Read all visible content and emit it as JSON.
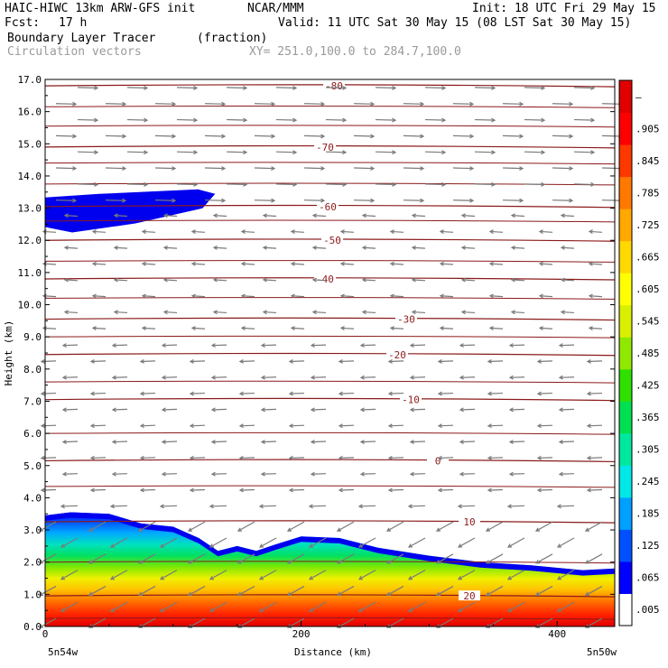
{
  "header": {
    "model": "HAIC-HIWC 13km ARW-GFS init",
    "org": "NCAR/MMM",
    "init": "Init: 18 UTC Fri 29 May 15",
    "fcst_label": "Fcst:",
    "fcst_value": "17 h",
    "valid": "Valid: 11 UTC Sat 30 May 15 (08 LST Sat 30 May 15)",
    "field": "Boundary Layer Tracer",
    "field_units": "(fraction)",
    "vector_label": "Circulation vectors",
    "xy_label": "XY= 251.0,100.0 to 284.7,100.0"
  },
  "colors": {
    "contour": "#8b1a1a",
    "vector": "#7a7a7a",
    "axes": "#000000"
  },
  "chart_data": {
    "type": "heatmap",
    "title": "Boundary Layer Tracer",
    "xlabel": "Distance (km)",
    "ylabel": "Height (km)",
    "xlim": [
      0,
      445
    ],
    "ylim": [
      0,
      17
    ],
    "x_ticks": [
      0,
      200,
      400
    ],
    "y_ticks": [
      "0.0",
      "1.0",
      "2.0",
      "3.0",
      "4.0",
      "5.0",
      "6.0",
      "7.0",
      "8.0",
      "9.0",
      "10.0",
      "11.0",
      "12.0",
      "13.0",
      "14.0",
      "15.0",
      "16.0",
      "17.0"
    ],
    "x_left_label": "5n54w",
    "x_right_label": "5n50w",
    "colorbar": {
      "labels": [
        ".005",
        ".065",
        ".125",
        ".185",
        ".245",
        ".305",
        ".365",
        ".425",
        ".485",
        ".545",
        ".605",
        ".665",
        ".725",
        ".785",
        ".845",
        ".905",
        "–"
      ],
      "colors": [
        "#ffffff",
        "#0000ff",
        "#0050ff",
        "#00a0ff",
        "#00e8e8",
        "#00e8a0",
        "#00e050",
        "#30e000",
        "#90e800",
        "#d8f000",
        "#ffff00",
        "#ffd800",
        "#ffa800",
        "#ff7800",
        "#ff3800",
        "#ff0000",
        "#e00000"
      ]
    },
    "contours": [
      {
        "label": "-80",
        "height": 16.8
      },
      {
        "label": "-70",
        "height": 14.9
      },
      {
        "label": "-60",
        "height": 13.05
      },
      {
        "label": "-50",
        "height": 12.0
      },
      {
        "label": "-40",
        "height": 10.8
      },
      {
        "label": "-30",
        "height": 9.55
      },
      {
        "label": "-20",
        "height": 8.45
      },
      {
        "label": "-10",
        "height": 7.05
      },
      {
        "label": "0",
        "height": 5.15
      },
      {
        "label": "10",
        "height": 3.25
      },
      {
        "label": "20",
        "height": 0.95
      }
    ],
    "tracer_top_km": [
      {
        "x": 0,
        "z": 3.45
      },
      {
        "x": 20,
        "z": 3.55
      },
      {
        "x": 50,
        "z": 3.5
      },
      {
        "x": 75,
        "z": 3.2
      },
      {
        "x": 100,
        "z": 3.1
      },
      {
        "x": 120,
        "z": 2.75
      },
      {
        "x": 135,
        "z": 2.35
      },
      {
        "x": 150,
        "z": 2.5
      },
      {
        "x": 165,
        "z": 2.35
      },
      {
        "x": 180,
        "z": 2.55
      },
      {
        "x": 200,
        "z": 2.8
      },
      {
        "x": 230,
        "z": 2.75
      },
      {
        "x": 260,
        "z": 2.45
      },
      {
        "x": 300,
        "z": 2.2
      },
      {
        "x": 340,
        "z": 2.0
      },
      {
        "x": 380,
        "z": 1.9
      },
      {
        "x": 420,
        "z": 1.75
      },
      {
        "x": 445,
        "z": 1.8
      }
    ],
    "upper_blob_km": {
      "x_start": 0,
      "x_end": 130,
      "z_bottom": 12.3,
      "z_top": 13.5
    }
  }
}
